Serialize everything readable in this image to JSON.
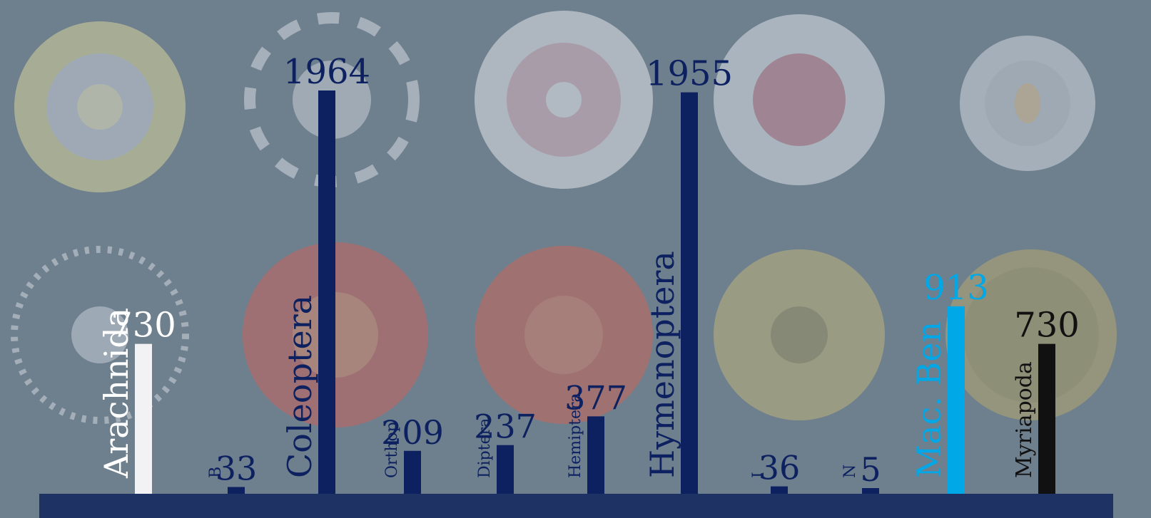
{
  "chart_data": {
    "type": "bar",
    "categories": [
      "Arachnida",
      "B",
      "Coleoptera",
      "Orthop",
      "Diptera",
      "Hemiptera",
      "Hymenoptera",
      "I",
      "N",
      "Mac. Ben",
      "Myriapoda"
    ],
    "values": [
      730,
      33,
      1964,
      209,
      237,
      377,
      1955,
      36,
      5,
      913,
      730
    ],
    "value_labels": [
      "730",
      "33",
      "1964",
      "209",
      "237",
      "377",
      "1955",
      "36",
      "5",
      "913",
      "730"
    ],
    "bar_colors": [
      "#f2f2f4",
      "#0d2160",
      "#0d2160",
      "#0d2160",
      "#0d2160",
      "#0d2160",
      "#0d2160",
      "#0d2160",
      "#0d2160",
      "#00a8e8",
      "#111111"
    ],
    "label_colors": [
      "#ffffff",
      "#0d2160",
      "#0d2160",
      "#0d2160",
      "#0d2160",
      "#0d2160",
      "#0d2160",
      "#0d2160",
      "#0d2160",
      "#00a8e8",
      "#111111"
    ],
    "title": "",
    "xlabel": "",
    "ylabel": "",
    "ylim": [
      0,
      2100
    ],
    "grid": false,
    "legend": "none",
    "baseline_color": "#1e3263",
    "background_color": "#6e7f8e",
    "background_art": "radiolarian-illustrations"
  }
}
